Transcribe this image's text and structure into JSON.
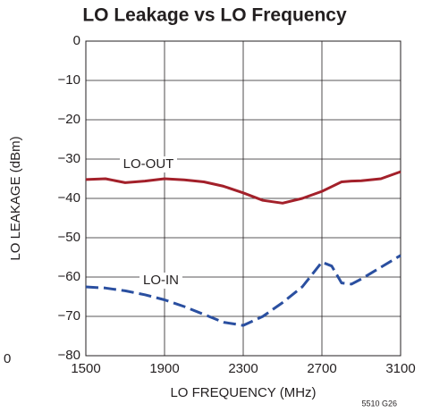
{
  "chart_data": {
    "type": "line",
    "title": "LO Leakage vs LO Frequency",
    "x_label": "LO FREQUENCY (MHz)",
    "y_label": "LO LEAKAGE (dBm)",
    "annotations": [
      "LO-OUT",
      "LO-IN",
      "5510 G26"
    ],
    "edge_label": "0",
    "x": [
      1500,
      1600,
      1700,
      1800,
      1900,
      2000,
      2100,
      2200,
      2300,
      2400,
      2500,
      2600,
      2700,
      2750,
      2800,
      2850,
      2900,
      3000,
      3100
    ],
    "series": [
      {
        "name": "LO-OUT",
        "color": "#a3202a",
        "dash": false,
        "values": [
          -35.2,
          -35,
          -36,
          -35.6,
          -35,
          -35.3,
          -35.8,
          -36.9,
          -38.6,
          -40.5,
          -41.2,
          -40,
          -38.2,
          -37,
          -35.8,
          -35.6,
          -35.5,
          -35,
          -33.2
        ]
      },
      {
        "name": "LO-IN",
        "color": "#2a4fa0",
        "dash": true,
        "values": [
          -62.5,
          -62.8,
          -63.5,
          -64.5,
          -65.8,
          -67.5,
          -69.5,
          -71.5,
          -72.3,
          -70,
          -66.5,
          -62.5,
          -56.2,
          -57.2,
          -61.5,
          -61.8,
          -60.5,
          -57.5,
          -54.5
        ]
      }
    ],
    "xlim": [
      1500,
      3100
    ],
    "xticks": [
      1500,
      1900,
      2300,
      2700,
      3100
    ],
    "ylim": [
      -80,
      0
    ],
    "yticks": [
      0,
      {
        "value": -10,
        "label": "−10"
      },
      {
        "value": -20,
        "label": "−20"
      },
      {
        "value": -30,
        "label": "−30"
      },
      {
        "value": -40,
        "label": "−40"
      },
      {
        "value": -50,
        "label": "−50"
      },
      {
        "value": -60,
        "label": "−60"
      },
      {
        "value": -70,
        "label": "−70"
      },
      {
        "value": -80,
        "label": "−80"
      }
    ],
    "grid": true
  }
}
